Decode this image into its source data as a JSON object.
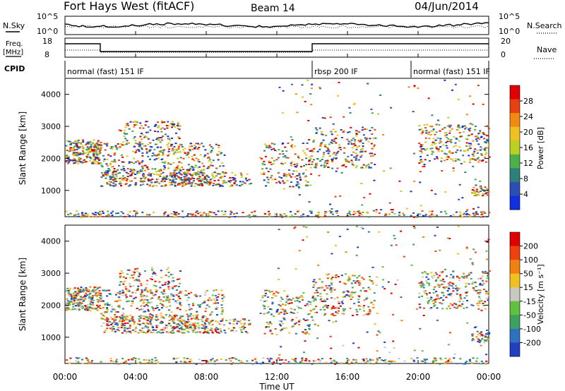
{
  "header": {
    "title": "Fort Hays West (fitACF)",
    "beam": "Beam 14",
    "date": "04/Jun/2014"
  },
  "top_panels": {
    "nsky_label": "N.Sky",
    "nsky_ticks": [
      "10^5",
      "10^0"
    ],
    "nsearch_label": "N.Search",
    "nsearch_ticks": [
      "10^5",
      "10^0"
    ],
    "freq_label_1": "Freq.",
    "freq_label_2": "[MHz]",
    "freq_ticks": [
      "18",
      "8"
    ],
    "nave_label": "Nave",
    "nave_ticks": [
      "20",
      "0"
    ],
    "cpid_label": "CPID",
    "cpid_segments": [
      {
        "label": "normal (fast) 151 IF",
        "start_h": 0,
        "end_h": 14.0
      },
      {
        "label": "rbsp 200 IF",
        "start_h": 14.0,
        "end_h": 19.6
      },
      {
        "label": "normal (fast) 151 IF",
        "start_h": 19.6,
        "end_h": 24
      }
    ]
  },
  "chart_data": [
    {
      "type": "heatmap",
      "name": "power",
      "ylabel": "Slant Range [km]",
      "yticks": [
        "4000",
        "3000",
        "2000",
        "1000"
      ],
      "ylim": [
        180,
        4500
      ],
      "colorbar_label": "Power [dB]",
      "colorbar_ticks": [
        "28",
        "24",
        "20",
        "16",
        "12",
        "8",
        "4"
      ],
      "colors": [
        "#1030e0",
        "#2a4fb0",
        "#2f7f7a",
        "#4bb04a",
        "#b8d020",
        "#f0c020",
        "#f08a10",
        "#e84010",
        "#e00000"
      ]
    },
    {
      "type": "heatmap",
      "name": "velocity",
      "ylabel": "Slant Range [km]",
      "yticks": [
        "4000",
        "3000",
        "2000",
        "1000"
      ],
      "ylim": [
        180,
        4500
      ],
      "colorbar_label": "Velocity [m s⁻¹]",
      "colorbar_ticks": [
        "200",
        "100",
        "50",
        "15",
        "-15",
        "-50",
        "-100",
        "-200"
      ],
      "colors": [
        "#2040c0",
        "#3070c0",
        "#40a060",
        "#60c040",
        "#c8c8c0",
        "#f0c020",
        "#f08010",
        "#f04010",
        "#e00000"
      ]
    }
  ],
  "x_axis": {
    "label": "Time UT",
    "ticks": [
      "00:00",
      "04:00",
      "08:00",
      "12:00",
      "16:00",
      "20:00",
      "00:00"
    ]
  }
}
